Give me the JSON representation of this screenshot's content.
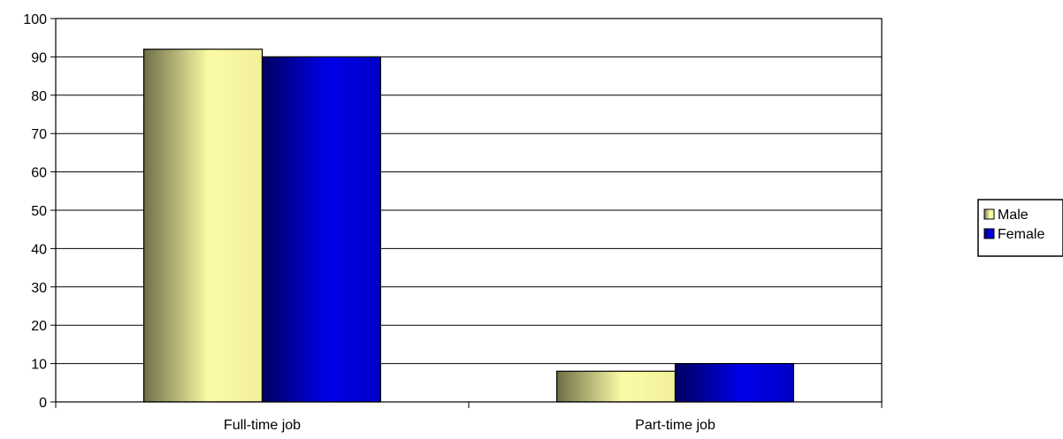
{
  "chart_data": {
    "type": "bar",
    "title": "",
    "xlabel": "",
    "ylabel": "",
    "categories": [
      "Full-time job",
      "Part-time job"
    ],
    "series": [
      {
        "name": "Male",
        "values": [
          92,
          8
        ],
        "color": "#f2f09a"
      },
      {
        "name": "Female",
        "values": [
          90,
          10
        ],
        "color": "#0000cc"
      }
    ],
    "ylim": [
      0,
      100
    ],
    "ytick_step": 10,
    "grid": true,
    "legend_position": "right"
  }
}
